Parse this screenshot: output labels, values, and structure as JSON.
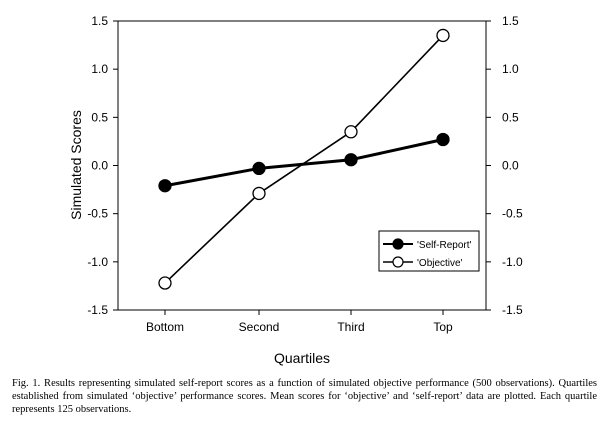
{
  "chart_data": {
    "type": "line",
    "categories": [
      "Bottom",
      "Second",
      "Third",
      "Top"
    ],
    "series": [
      {
        "name": "'Self-Report'",
        "values": [
          -0.21,
          -0.03,
          0.06,
          0.27
        ],
        "marker": "filled-circle",
        "color": "#000000"
      },
      {
        "name": "'Objective'",
        "values": [
          -1.22,
          -0.29,
          0.35,
          1.35
        ],
        "marker": "open-circle",
        "color": "#000000"
      }
    ],
    "xlabel": "Quartiles",
    "ylabel": "Simulated Scores",
    "ylim": [
      -1.5,
      1.5
    ],
    "yticks": [
      "-1.5",
      "-1.0",
      "-0.5",
      "0.0",
      "0.5",
      "1.0",
      "1.5"
    ],
    "right_axis": true,
    "grid": false,
    "legend_position": "bottom-right"
  },
  "caption": "Fig. 1. Results representing simulated self-report scores as a function of simulated objective performance (500 observations). Quartiles established from simulated ‘objective’ performance scores. Mean scores for ‘objective’ and ‘self-report’ data are plotted. Each quartile represents 125 observations."
}
